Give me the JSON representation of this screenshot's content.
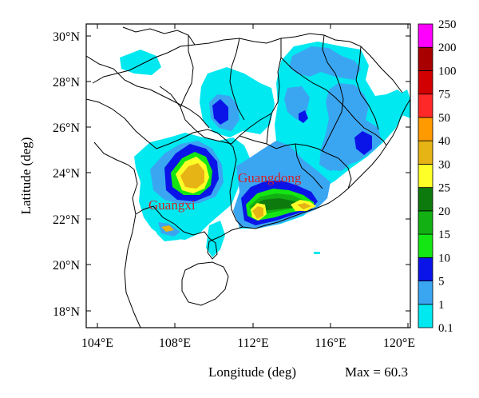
{
  "map": {
    "x_axis": {
      "title": "Longitude (deg)",
      "ticks": [
        "104°E",
        "108°E",
        "112°E",
        "116°E",
        "120°E"
      ]
    },
    "y_axis": {
      "title": "Latitude (deg)",
      "ticks": [
        "30°N",
        "28°N",
        "26°N",
        "24°N",
        "22°N",
        "20°N",
        "18°N"
      ]
    },
    "max_label": "Max = 60.3",
    "regions": [
      {
        "name": "Guangxi",
        "color": "#d2202a"
      },
      {
        "name": "Guangdong",
        "color": "#d2202a"
      }
    ]
  },
  "colorbar": {
    "levels": [
      "0.1",
      "1",
      "5",
      "10",
      "15",
      "20",
      "25",
      "30",
      "40",
      "50",
      "75",
      "100",
      "200",
      "250"
    ],
    "colors": [
      "#00e8f0",
      "#3aa6f2",
      "#0a14e8",
      "#14e614",
      "#12b012",
      "#0d7a0d",
      "#ffff28",
      "#e6b414",
      "#ff9a00",
      "#ff2828",
      "#d20000",
      "#a80000",
      "#ff00ff"
    ]
  },
  "chart_data": {
    "type": "heatmap",
    "xlabel": "Longitude (deg)",
    "ylabel": "Latitude (deg)",
    "xlim": [
      103,
      120.5
    ],
    "ylim": [
      17,
      30.5
    ],
    "max_value": 60.3,
    "contour_levels": [
      0.1,
      1,
      5,
      10,
      15,
      20,
      25,
      30,
      40,
      50,
      75,
      100,
      200,
      250
    ],
    "peak_areas": [
      {
        "region": "Guangxi",
        "lon": 109.3,
        "lat": 23.8,
        "class": "30-40"
      },
      {
        "region": "Guangdong",
        "lon": 112.6,
        "lat": 22.4,
        "class": "30-40"
      },
      {
        "region": "Guangdong",
        "lon": 114.9,
        "lat": 22.7,
        "class": "25-30"
      }
    ]
  }
}
